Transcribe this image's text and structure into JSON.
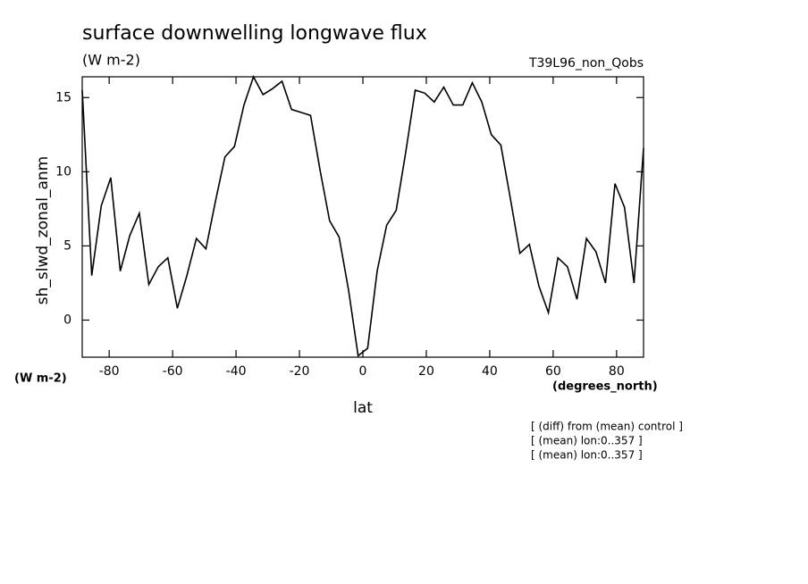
{
  "chart_data": {
    "type": "line",
    "title": "surface downwelling longwave flux",
    "units": "(W m-2)",
    "run_label": "T39L96_non_Qobs",
    "ylabel": "sh_slwd_zonal_anm",
    "y_units": "(W m-2)",
    "xlabel": "lat",
    "x_units": "(degrees_north)",
    "notes": [
      "[ (diff) from (mean) control ]",
      "[ (mean) lon:0..357 ]",
      "[ (mean) lon:0..357 ]"
    ],
    "x": [
      -88.5,
      -85.5,
      -82.5,
      -79.5,
      -76.5,
      -73.5,
      -70.5,
      -67.5,
      -64.5,
      -61.5,
      -58.5,
      -55.5,
      -52.5,
      -49.5,
      -46.5,
      -43.5,
      -40.5,
      -37.5,
      -34.5,
      -31.5,
      -28.5,
      -25.5,
      -22.5,
      -19.5,
      -16.5,
      -13.5,
      -10.5,
      -7.5,
      -4.5,
      -1.5,
      1.5,
      4.5,
      7.5,
      10.5,
      13.5,
      16.5,
      19.5,
      22.5,
      25.5,
      28.5,
      31.5,
      34.5,
      37.5,
      40.5,
      43.5,
      46.5,
      49.5,
      52.5,
      55.5,
      58.5,
      61.5,
      64.5,
      67.5,
      70.5,
      73.5,
      76.5,
      79.5,
      82.5,
      85.5,
      88.5
    ],
    "series": [
      {
        "name": "sh_slwd_zonal_anm",
        "color": "#000000",
        "values": [
          15.5,
          3.0,
          7.7,
          9.6,
          3.3,
          5.7,
          7.2,
          2.4,
          3.6,
          4.2,
          0.8,
          3.0,
          5.5,
          4.8,
          8.0,
          11.0,
          11.7,
          14.5,
          16.4,
          15.2,
          15.6,
          16.1,
          14.2,
          14.0,
          13.8,
          10.1,
          6.7,
          5.6,
          2.0,
          -2.4,
          -1.9,
          3.3,
          6.4,
          7.4,
          11.3,
          15.5,
          15.3,
          14.7,
          15.7,
          14.5,
          14.5,
          16.0,
          14.7,
          12.5,
          11.8,
          8.2,
          4.5,
          5.1,
          2.3,
          0.5,
          4.2,
          3.6,
          1.4,
          5.5,
          4.6,
          2.5,
          9.2,
          7.6,
          2.5,
          11.6
        ]
      }
    ],
    "xlim": [
      -88.5,
      88.5
    ],
    "ylim": [
      -2.5,
      16.4
    ],
    "xticks": [
      -80,
      -60,
      -40,
      -20,
      0,
      20,
      40,
      60,
      80
    ],
    "yticks": [
      0,
      5,
      10,
      15
    ]
  }
}
